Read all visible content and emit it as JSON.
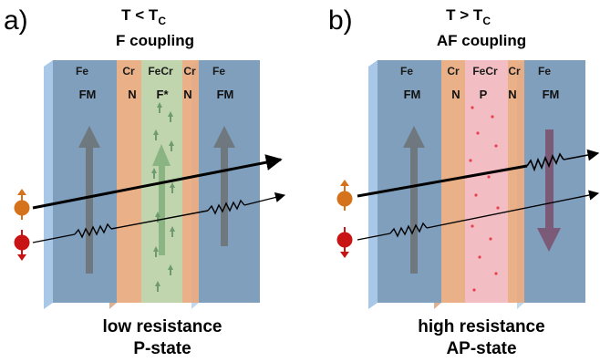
{
  "panels": [
    {
      "label": "a)",
      "condition_main": "T < T",
      "condition_sub": "C",
      "coupling": "F coupling",
      "layers": {
        "fe_left": "Fe",
        "cr_left": "Cr",
        "fecr": "FeCr",
        "cr_right": "Cr",
        "fe_right": "Fe"
      },
      "states": {
        "fm_left": "FM",
        "n_left": "N",
        "core": "F*",
        "n_right": "N",
        "fm_right": "FM"
      },
      "resistance": "low resistance",
      "state": "P-state",
      "colors": {
        "core": "#b5cca0",
        "right_magnet_arrow": "#6b6b6b"
      }
    },
    {
      "label": "b)",
      "condition_main": "T > T",
      "condition_sub": "C",
      "coupling": "AF coupling",
      "layers": {
        "fe_left": "Fe",
        "cr_left": "Cr",
        "fecr": "FeCr",
        "cr_right": "Cr",
        "fe_right": "Fe"
      },
      "states": {
        "fm_left": "FM",
        "n_left": "N",
        "core": "P",
        "n_right": "N",
        "fm_right": "FM"
      },
      "resistance": "high resistance",
      "state": "AP-state",
      "colors": {
        "core": "#f2b7bd",
        "right_magnet_arrow": "#7a4a66"
      }
    }
  ],
  "colors": {
    "fe": "#7f9fbd",
    "fe_edge": "#a9c7e6",
    "cr": "#e8a87c",
    "spin_up": "#d4731c",
    "spin_down": "#c81414",
    "fm_arrow": "#6b6b6b"
  }
}
